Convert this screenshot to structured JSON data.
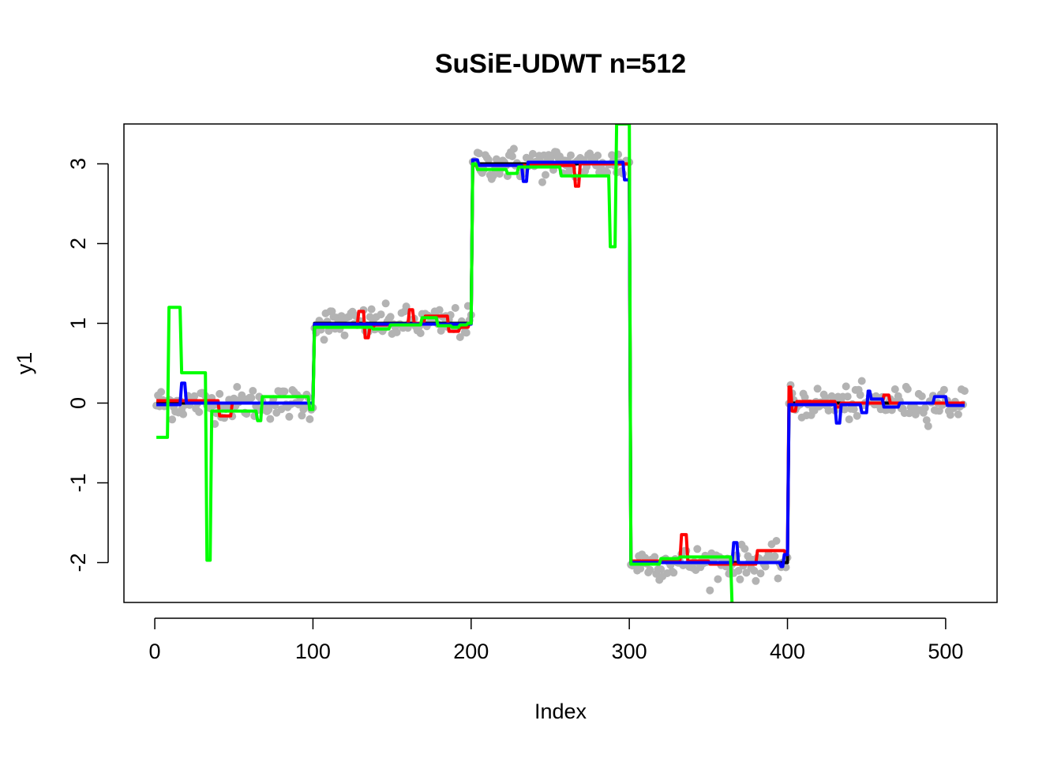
{
  "chart_data": {
    "type": "line",
    "title": "SuSiE-UDWT n=512",
    "xlabel": "Index",
    "ylabel": "y1",
    "xlim": [
      0,
      512
    ],
    "ylim": [
      -2.5,
      3.5
    ],
    "x_ticks": [
      "0",
      "100",
      "200",
      "300",
      "400",
      "500"
    ],
    "y_ticks": [
      "-2",
      "-1",
      "0",
      "1",
      "2",
      "3"
    ],
    "grid": false,
    "legend": "none",
    "colors": {
      "observed": "#b3b3b3",
      "truth": "#000000",
      "red": "#ff0000",
      "blue": "#0000ff",
      "green": "#00ff00"
    },
    "observed_points": {
      "segments": [
        {
          "start": 1,
          "end": 100,
          "level": 0
        },
        {
          "start": 101,
          "end": 200,
          "level": 1
        },
        {
          "start": 201,
          "end": 300,
          "level": 3
        },
        {
          "start": 301,
          "end": 400,
          "level": -2
        },
        {
          "start": 401,
          "end": 512,
          "level": 0
        }
      ],
      "noise_sd": 0.1
    },
    "series": [
      {
        "color": "black",
        "x": [
          1,
          100,
          101,
          200,
          201,
          300,
          301,
          400,
          401,
          512
        ],
        "y": [
          0,
          0,
          1,
          1,
          3,
          3,
          -2,
          -2,
          0,
          0
        ]
      },
      {
        "color": "red",
        "x": [
          1,
          40,
          41,
          48,
          49,
          100,
          101,
          128,
          129,
          132,
          133,
          135,
          136,
          138,
          139,
          160,
          161,
          163,
          164,
          170,
          171,
          185,
          186,
          192,
          193,
          198,
          199,
          200,
          201,
          265,
          266,
          268,
          269,
          300,
          301,
          332,
          333,
          336,
          337,
          350,
          351,
          380,
          381,
          398,
          399,
          400,
          401,
          402,
          403,
          405,
          406,
          430,
          431,
          433,
          434,
          460,
          461,
          464,
          465,
          512
        ],
        "y": [
          0.03,
          0.03,
          -0.16,
          -0.16,
          0.0,
          0.0,
          0.97,
          0.97,
          1.15,
          1.15,
          0.82,
          0.82,
          0.95,
          0.95,
          0.98,
          0.98,
          1.17,
          1.17,
          1.0,
          1.0,
          1.09,
          1.09,
          0.9,
          0.9,
          0.95,
          0.95,
          1.0,
          1.0,
          2.98,
          2.98,
          2.72,
          2.72,
          3.0,
          3.0,
          -1.98,
          -1.98,
          -1.65,
          -1.65,
          -1.98,
          -1.98,
          -2.02,
          -2.02,
          -1.85,
          -1.85,
          -1.9,
          -1.9,
          0.2,
          0.2,
          -0.1,
          -0.1,
          0.02,
          0.02,
          -0.05,
          -0.05,
          0.0,
          0.0,
          0.1,
          0.1,
          0.0,
          0.0
        ]
      },
      {
        "color": "blue",
        "x": [
          1,
          16,
          17,
          19,
          20,
          100,
          101,
          200,
          201,
          204,
          205,
          232,
          233,
          235,
          236,
          296,
          297,
          300,
          301,
          365,
          366,
          368,
          369,
          395,
          396,
          397,
          398,
          400,
          401,
          430,
          431,
          433,
          434,
          446,
          447,
          450,
          451,
          452,
          453,
          460,
          461,
          470,
          471,
          492,
          493,
          500,
          501,
          512
        ],
        "y": [
          -0.02,
          -0.02,
          0.25,
          0.25,
          0.0,
          0.0,
          0.99,
          0.99,
          3.05,
          3.05,
          2.98,
          2.98,
          2.78,
          2.78,
          3.02,
          3.02,
          2.8,
          2.8,
          -2.0,
          -2.0,
          -1.75,
          -1.75,
          -2.0,
          -2.0,
          -2.05,
          -2.05,
          -1.9,
          -1.9,
          -0.02,
          -0.02,
          -0.25,
          -0.25,
          -0.02,
          -0.02,
          -0.12,
          -0.12,
          0.15,
          0.15,
          0.05,
          0.05,
          -0.05,
          -0.05,
          0.0,
          0.0,
          0.08,
          0.08,
          -0.03,
          -0.03
        ]
      },
      {
        "color": "green",
        "x": [
          1,
          8,
          9,
          16,
          17,
          32,
          33,
          35,
          36,
          64,
          65,
          67,
          68,
          72,
          73,
          97,
          98,
          100,
          101,
          118,
          119,
          137,
          138,
          148,
          149,
          168,
          169,
          178,
          179,
          187,
          188,
          192,
          193,
          197,
          198,
          200,
          201,
          203,
          204,
          222,
          223,
          229,
          230,
          256,
          257,
          287,
          288,
          291,
          292,
          293,
          294,
          297,
          298,
          300,
          301,
          319,
          320,
          331,
          332,
          364,
          365,
          372,
          373,
          373,
          374,
          372,
          373,
          372,
          373,
          372,
          373,
          372,
          373,
          372,
          373,
          372,
          373,
          372,
          373,
          372,
          373
        ],
        "y": [
          -0.43,
          -0.43,
          1.2,
          1.2,
          0.38,
          0.38,
          -1.97,
          -1.97,
          -0.1,
          -0.1,
          -0.22,
          -0.22,
          0.08,
          0.08,
          0.08,
          0.08,
          -0.08,
          -0.08,
          0.95,
          0.95,
          0.95,
          0.95,
          0.93,
          0.93,
          0.98,
          0.98,
          1.07,
          1.07,
          0.97,
          0.97,
          0.95,
          0.95,
          0.98,
          0.98,
          1.0,
          1.0,
          3.0,
          3.0,
          2.93,
          2.93,
          2.88,
          2.88,
          2.96,
          2.96,
          2.85,
          2.85,
          1.96,
          1.96,
          3.5,
          3.5,
          3.5,
          3.5,
          3.5,
          3.5,
          -2.02,
          -2.02,
          -1.95,
          -1.95,
          -1.93,
          -1.93,
          -2.55,
          -2.55,
          -2.55,
          -2.55,
          -2.55,
          -2.55,
          -2.55,
          -2.55,
          -2.55,
          -2.55,
          -2.55,
          -2.55,
          -2.55,
          -2.55,
          -2.55,
          -2.55,
          -2.55,
          -2.55,
          -2.55,
          -2.55,
          -2.55
        ]
      }
    ]
  }
}
